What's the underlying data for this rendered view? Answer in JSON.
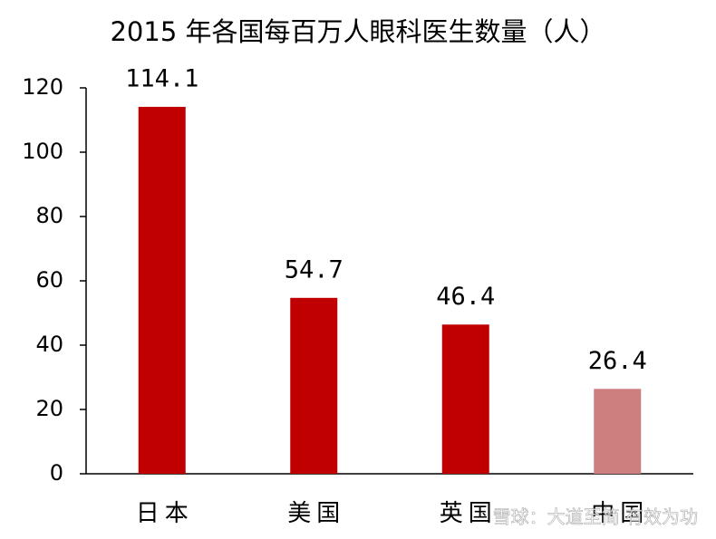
{
  "chart_data": {
    "type": "bar",
    "title": "2015 年各国每百万人眼科医生数量（人）",
    "categories": [
      "日本",
      "美国",
      "英国",
      "中国"
    ],
    "values": [
      114.1,
      54.7,
      46.4,
      26.4
    ],
    "colors": [
      "#c00000",
      "#c00000",
      "#c00000",
      "#cd7f80"
    ],
    "ylim": [
      0,
      120
    ],
    "yticks": [
      0,
      20,
      40,
      60,
      80,
      100,
      120
    ],
    "grid": false,
    "watermark": "雪球：大道至简 有效为功"
  }
}
